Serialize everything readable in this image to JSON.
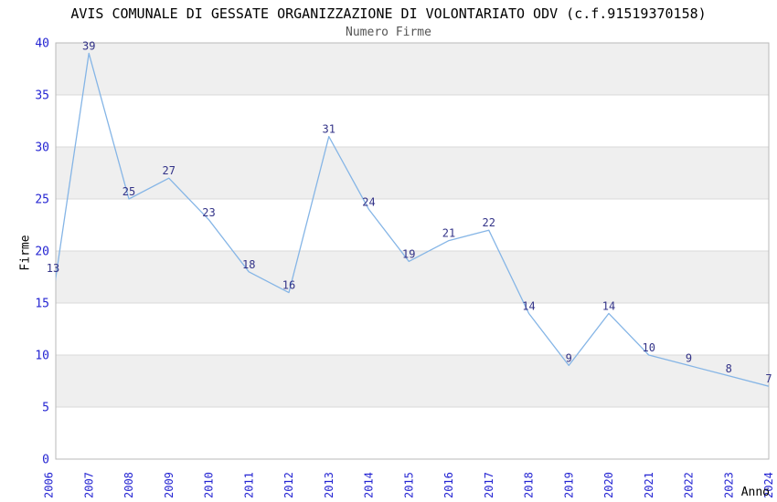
{
  "chart_data": {
    "type": "line",
    "title": "AVIS COMUNALE DI GESSATE ORGANIZZAZIONE DI VOLONTARIATO ODV (c.f.91519370158)",
    "subtitle": "Numero Firme",
    "xlabel": "Anno",
    "ylabel": "Firme",
    "x": [
      2006,
      2007,
      2008,
      2009,
      2010,
      2011,
      2012,
      2013,
      2014,
      2015,
      2016,
      2017,
      2018,
      2019,
      2020,
      2021,
      2022,
      2023,
      2024
    ],
    "series": [
      {
        "name": "Numero Firme",
        "values": [
          13,
          39,
          25,
          27,
          23,
          18,
          16,
          31,
          24,
          19,
          21,
          22,
          14,
          9,
          14,
          10,
          9,
          8,
          7
        ]
      }
    ],
    "ylim": [
      0,
      40
    ],
    "ytick_step": 5,
    "yticks": [
      0,
      5,
      10,
      15,
      20,
      25,
      30,
      35,
      40
    ],
    "grid": "alternating-horizontal-bands",
    "legend": "none",
    "point_labels_visible": true,
    "colors": {
      "line": "#85b5e6",
      "point_labels": "#333388",
      "tick_labels": "#2424d2",
      "axis_titles": "#000000",
      "title": "#000000",
      "subtitle": "#555555",
      "band": "#efefef",
      "gridline": "#d8d8d8",
      "border": "#b9b9b9",
      "background": "#ffffff"
    }
  }
}
